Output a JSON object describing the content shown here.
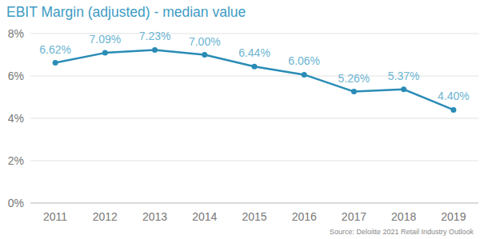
{
  "chart_data": {
    "type": "line",
    "title": "EBIT Margin (adjusted) - median value",
    "source": "Source: Deloitte 2021 Retail Industry Outlook",
    "categories": [
      "2011",
      "2012",
      "2013",
      "2014",
      "2015",
      "2016",
      "2017",
      "2018",
      "2019"
    ],
    "values": [
      6.62,
      7.09,
      7.23,
      7.0,
      6.44,
      6.06,
      5.26,
      5.37,
      4.4
    ],
    "value_labels": [
      "6.62%",
      "7.09%",
      "7.23%",
      "7.00%",
      "6.44%",
      "6.06%",
      "5.26%",
      "5.37%",
      "4.40%"
    ],
    "color": "#2a8cb6",
    "marker": "circle",
    "data_labels": true,
    "grid": true,
    "ylim": [
      0,
      8
    ],
    "yticks": [
      {
        "value": 0,
        "label": "0%"
      },
      {
        "value": 2,
        "label": "2%"
      },
      {
        "value": 4,
        "label": "4%"
      },
      {
        "value": 6,
        "label": "6%"
      },
      {
        "value": 8,
        "label": "8%"
      }
    ]
  }
}
